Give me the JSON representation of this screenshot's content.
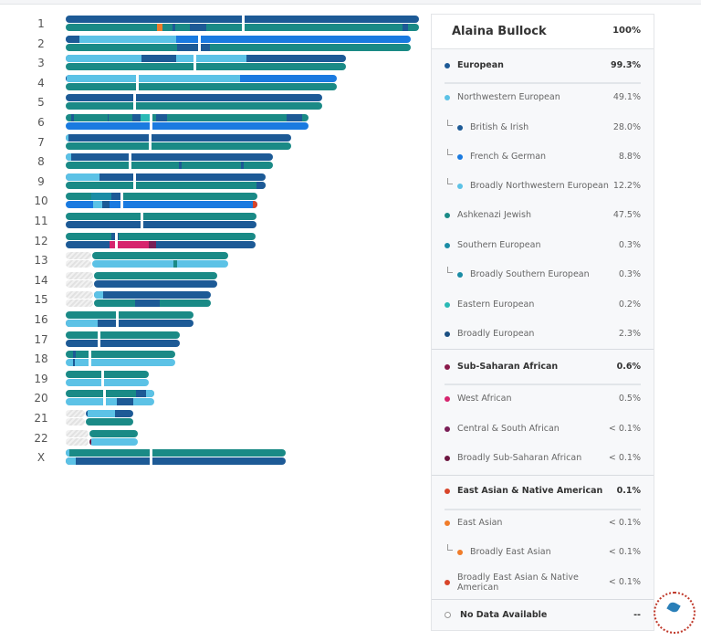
{
  "chromosomes": [
    "1",
    "2",
    "3",
    "4",
    "5",
    "6",
    "7",
    "8",
    "9",
    "10",
    "11",
    "12",
    "13",
    "14",
    "15",
    "16",
    "17",
    "18",
    "19",
    "20",
    "21",
    "22",
    "X"
  ],
  "colors": {
    "british_irish": "#1d5a96",
    "ashkenazi": "#1a8a86",
    "broad_nw": "#5cc2e6",
    "french_german": "#1a7ae0",
    "southern": "#1a8ca5",
    "eastern": "#2ab9b5",
    "broad_eur": "#1b4f82",
    "west_african": "#d6246e",
    "central_south_african": "#7a1e56",
    "broad_ssa": "#6d1640",
    "east_asian": "#f07c2a",
    "broad_eana": "#d8452a",
    "nodata": "#dcdcdc"
  },
  "panel": {
    "name": "Alaina Bullock",
    "total": "100%",
    "rows": [
      {
        "label": "European",
        "pct": "99.3%",
        "color": "#1d5a96",
        "bold": true
      },
      {
        "label": "Northwestern European",
        "pct": "49.1%",
        "color": "#5cc2e6"
      },
      {
        "label": "British & Irish",
        "pct": "28.0%",
        "color": "#1d5a96",
        "sub": true
      },
      {
        "label": "French & German",
        "pct": "8.8%",
        "color": "#1a7ae0",
        "sub": true
      },
      {
        "label": "Broadly Northwestern European",
        "pct": "12.2%",
        "color": "#5cc2e6",
        "sub": true
      },
      {
        "label": "Ashkenazi Jewish",
        "pct": "47.5%",
        "color": "#1a8a86"
      },
      {
        "label": "Southern European",
        "pct": "0.3%",
        "color": "#1a8ca5"
      },
      {
        "label": "Broadly Southern European",
        "pct": "0.3%",
        "color": "#1a8ca5",
        "sub": true
      },
      {
        "label": "Eastern European",
        "pct": "0.2%",
        "color": "#2ab9b5"
      },
      {
        "label": "Broadly European",
        "pct": "2.3%",
        "color": "#1b4f82"
      },
      {
        "label": "Sub-Saharan African",
        "pct": "0.6%",
        "color": "#8a1a4a",
        "bold": true
      },
      {
        "label": "West African",
        "pct": "0.5%",
        "color": "#d6246e"
      },
      {
        "label": "Central & South African",
        "pct": "< 0.1%",
        "color": "#7a1e56"
      },
      {
        "label": "Broadly Sub-Saharan African",
        "pct": "< 0.1%",
        "color": "#6d1640"
      },
      {
        "label": "East Asian & Native American",
        "pct": "0.1%",
        "color": "#d8452a",
        "bold": true
      },
      {
        "label": "East Asian",
        "pct": "< 0.1%",
        "color": "#f07c2a"
      },
      {
        "label": "Broadly East Asian",
        "pct": "< 0.1%",
        "color": "#f07c2a",
        "sub": true
      },
      {
        "label": "Broadly East Asian & Native American",
        "pct": "< 0.1%",
        "color": "#d8452a"
      },
      {
        "label": "No Data Available",
        "pct": "--",
        "color": "#ffffff",
        "bold": true,
        "nodata": true
      }
    ]
  }
}
